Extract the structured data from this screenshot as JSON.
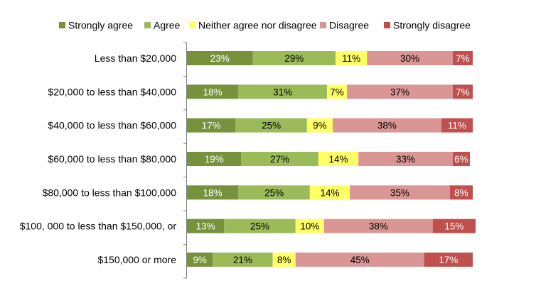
{
  "chart_data": {
    "type": "bar",
    "orientation": "horizontal",
    "stacked": true,
    "percent_stacked": true,
    "legend_position": "top",
    "grid": false,
    "xlim": [
      0,
      100
    ],
    "categories": [
      "Less than $20,000",
      "$20,000 to less than $40,000",
      "$40,000 to less than $60,000",
      "$60,000 to less than $80,000",
      "$80,000 to less than $100,000",
      "$100, 000 to less than $150,000, or",
      "$150,000 or more"
    ],
    "series": [
      {
        "name": "Strongly agree",
        "color": "#76923C",
        "label_color": "#FFFFFF",
        "values": [
          23,
          18,
          17,
          19,
          18,
          13,
          9
        ]
      },
      {
        "name": "Agree",
        "color": "#9BBB59",
        "label_color": "#000000",
        "values": [
          29,
          31,
          25,
          27,
          25,
          25,
          21
        ]
      },
      {
        "name": "Neither agree nor disagree",
        "color": "#FFFF66",
        "label_color": "#000000",
        "values": [
          11,
          7,
          9,
          14,
          14,
          10,
          8
        ]
      },
      {
        "name": "Disagree",
        "color": "#DA9694",
        "label_color": "#000000",
        "values": [
          30,
          37,
          38,
          33,
          35,
          38,
          45
        ]
      },
      {
        "name": "Strongly disagree",
        "color": "#C0504D",
        "label_color": "#FFFFFF",
        "values": [
          7,
          7,
          11,
          6,
          8,
          15,
          17
        ]
      }
    ],
    "value_suffix": "%"
  }
}
